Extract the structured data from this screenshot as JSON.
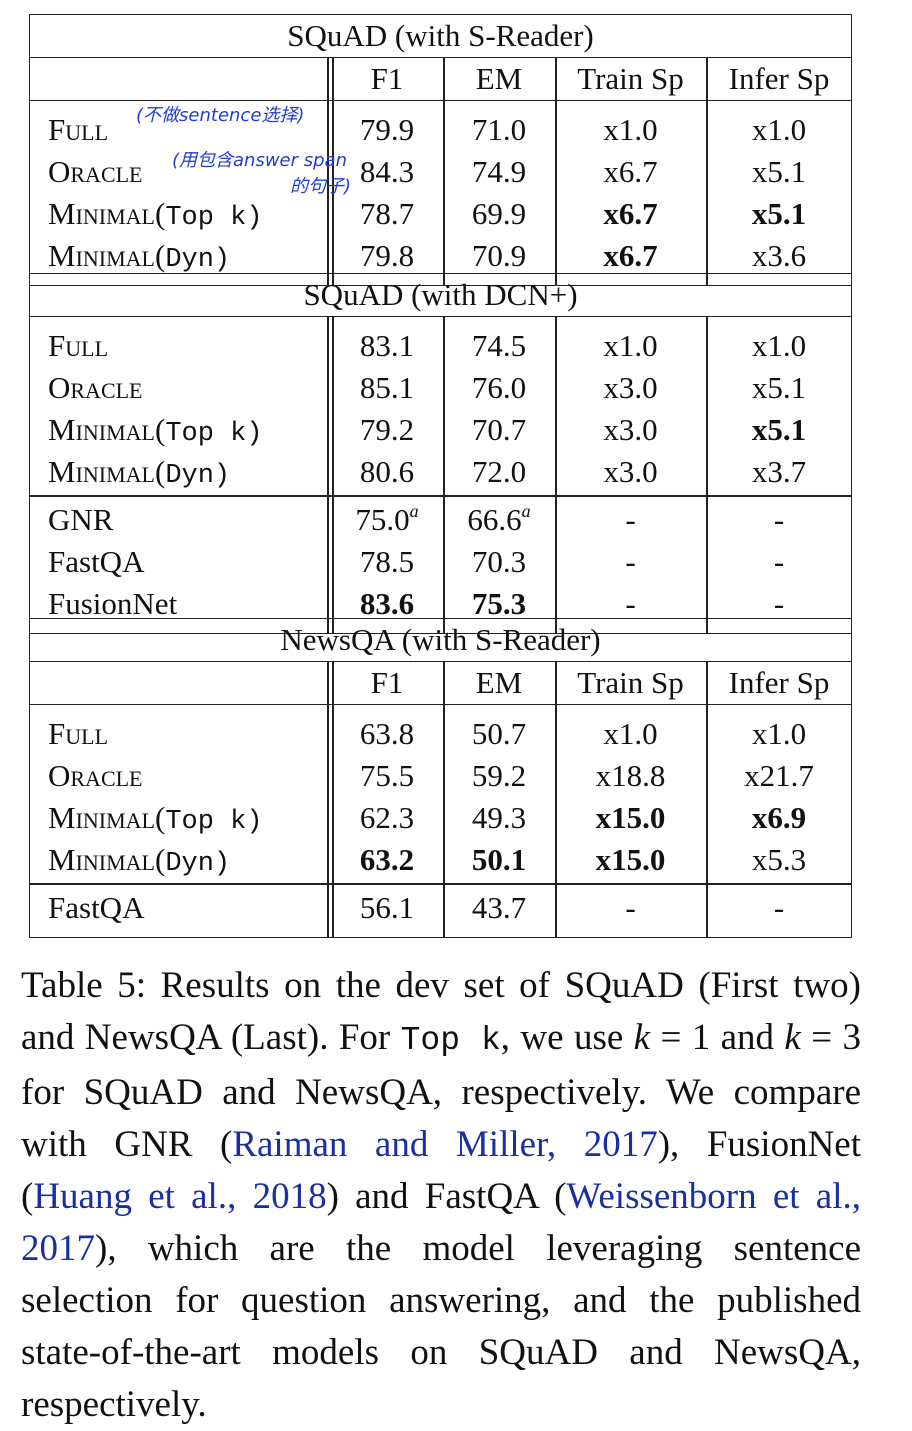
{
  "tables": [
    {
      "title": "SQuAD (with S-Reader)",
      "header": [
        "F1",
        "EM",
        "Train Sp",
        "Infer Sp"
      ],
      "groups": [
        [
          {
            "name": "Full",
            "suffix": "",
            "cells": [
              "79.9",
              "71.0",
              "x1.0",
              "x1.0"
            ],
            "bold": [
              false,
              false,
              false,
              false
            ]
          },
          {
            "name": "Oracle",
            "suffix": "",
            "cells": [
              "84.3",
              "74.9",
              "x6.7",
              "x5.1"
            ],
            "bold": [
              false,
              false,
              false,
              false
            ]
          },
          {
            "name": "Minimal(",
            "suffix": "Top k)",
            "cells": [
              "78.7",
              "69.9",
              "x6.7",
              "x5.1"
            ],
            "bold": [
              false,
              false,
              true,
              true
            ]
          },
          {
            "name": "Minimal(",
            "suffix": "Dyn)",
            "cells": [
              "79.8",
              "70.9",
              "x6.7",
              "x3.6"
            ],
            "bold": [
              false,
              false,
              true,
              false
            ]
          }
        ]
      ]
    },
    {
      "title": "SQuAD (with DCN+)",
      "header": null,
      "groups": [
        [
          {
            "name": "Full",
            "suffix": "",
            "cells": [
              "83.1",
              "74.5",
              "x1.0",
              "x1.0"
            ],
            "bold": [
              false,
              false,
              false,
              false
            ]
          },
          {
            "name": "Oracle",
            "suffix": "",
            "cells": [
              "85.1",
              "76.0",
              "x3.0",
              "x5.1"
            ],
            "bold": [
              false,
              false,
              false,
              false
            ]
          },
          {
            "name": "Minimal(",
            "suffix": "Top k)",
            "cells": [
              "79.2",
              "70.7",
              "x3.0",
              "x5.1"
            ],
            "bold": [
              false,
              false,
              false,
              true
            ]
          },
          {
            "name": "Minimal(",
            "suffix": "Dyn)",
            "cells": [
              "80.6",
              "72.0",
              "x3.0",
              "x3.7"
            ],
            "bold": [
              false,
              false,
              false,
              false
            ]
          }
        ],
        [
          {
            "name": "GNR",
            "suffix": "",
            "cells": [
              "75.0",
              "66.6",
              "-",
              "-"
            ],
            "sup": [
              "a",
              "a",
              "",
              ""
            ],
            "bold": [
              false,
              false,
              false,
              false
            ],
            "plain": true
          },
          {
            "name": "FastQA",
            "suffix": "",
            "cells": [
              "78.5",
              "70.3",
              "-",
              "-"
            ],
            "bold": [
              false,
              false,
              false,
              false
            ],
            "plain": true
          },
          {
            "name": "FusionNet",
            "suffix": "",
            "cells": [
              "83.6",
              "75.3",
              "-",
              "-"
            ],
            "bold": [
              true,
              true,
              false,
              false
            ],
            "plain": true
          }
        ]
      ]
    },
    {
      "title": "NewsQA (with S-Reader)",
      "header": [
        "F1",
        "EM",
        "Train Sp",
        "Infer Sp"
      ],
      "groups": [
        [
          {
            "name": "Full",
            "suffix": "",
            "cells": [
              "63.8",
              "50.7",
              "x1.0",
              "x1.0"
            ],
            "bold": [
              false,
              false,
              false,
              false
            ]
          },
          {
            "name": "Oracle",
            "suffix": "",
            "cells": [
              "75.5",
              "59.2",
              "x18.8",
              "x21.7"
            ],
            "bold": [
              false,
              false,
              false,
              false
            ]
          },
          {
            "name": "Minimal(",
            "suffix": "Top k)",
            "cells": [
              "62.3",
              "49.3",
              "x15.0",
              "x6.9"
            ],
            "bold": [
              false,
              false,
              true,
              true
            ]
          },
          {
            "name": "Minimal(",
            "suffix": "Dyn)",
            "cells": [
              "63.2",
              "50.1",
              "x15.0",
              "x5.3"
            ],
            "bold": [
              true,
              true,
              true,
              false
            ]
          }
        ],
        [
          {
            "name": "FastQA",
            "suffix": "",
            "cells": [
              "56.1",
              "43.7",
              "-",
              "-"
            ],
            "bold": [
              false,
              false,
              false,
              false
            ],
            "plain": true
          }
        ]
      ]
    }
  ],
  "annotations": [
    "(不做sentence选择)",
    "(用包含answer span",
    "的句子)"
  ],
  "caption": {
    "p1": "Table 5: Results on the dev set of SQuAD (First two) and NewsQA (Last). For ",
    "code": "Top k",
    "p2": ", we use ",
    "k1": "k",
    "p3": " = 1 and ",
    "k2": "k",
    "p4": " = 3 for SQuAD and NewsQA, respectively. We compare with GNR (",
    "cite1": "Raiman and Miller, 2017",
    "p5": "), FusionNet (",
    "cite2": "Huang et al., 2018",
    "p6": ") and FastQA (",
    "cite3": "Weissenborn et al., 2017",
    "p7": "), which are the model leveraging sentence selection for question answering, and the published state-of-the-art models on SQuAD and NewsQA, respectively."
  }
}
